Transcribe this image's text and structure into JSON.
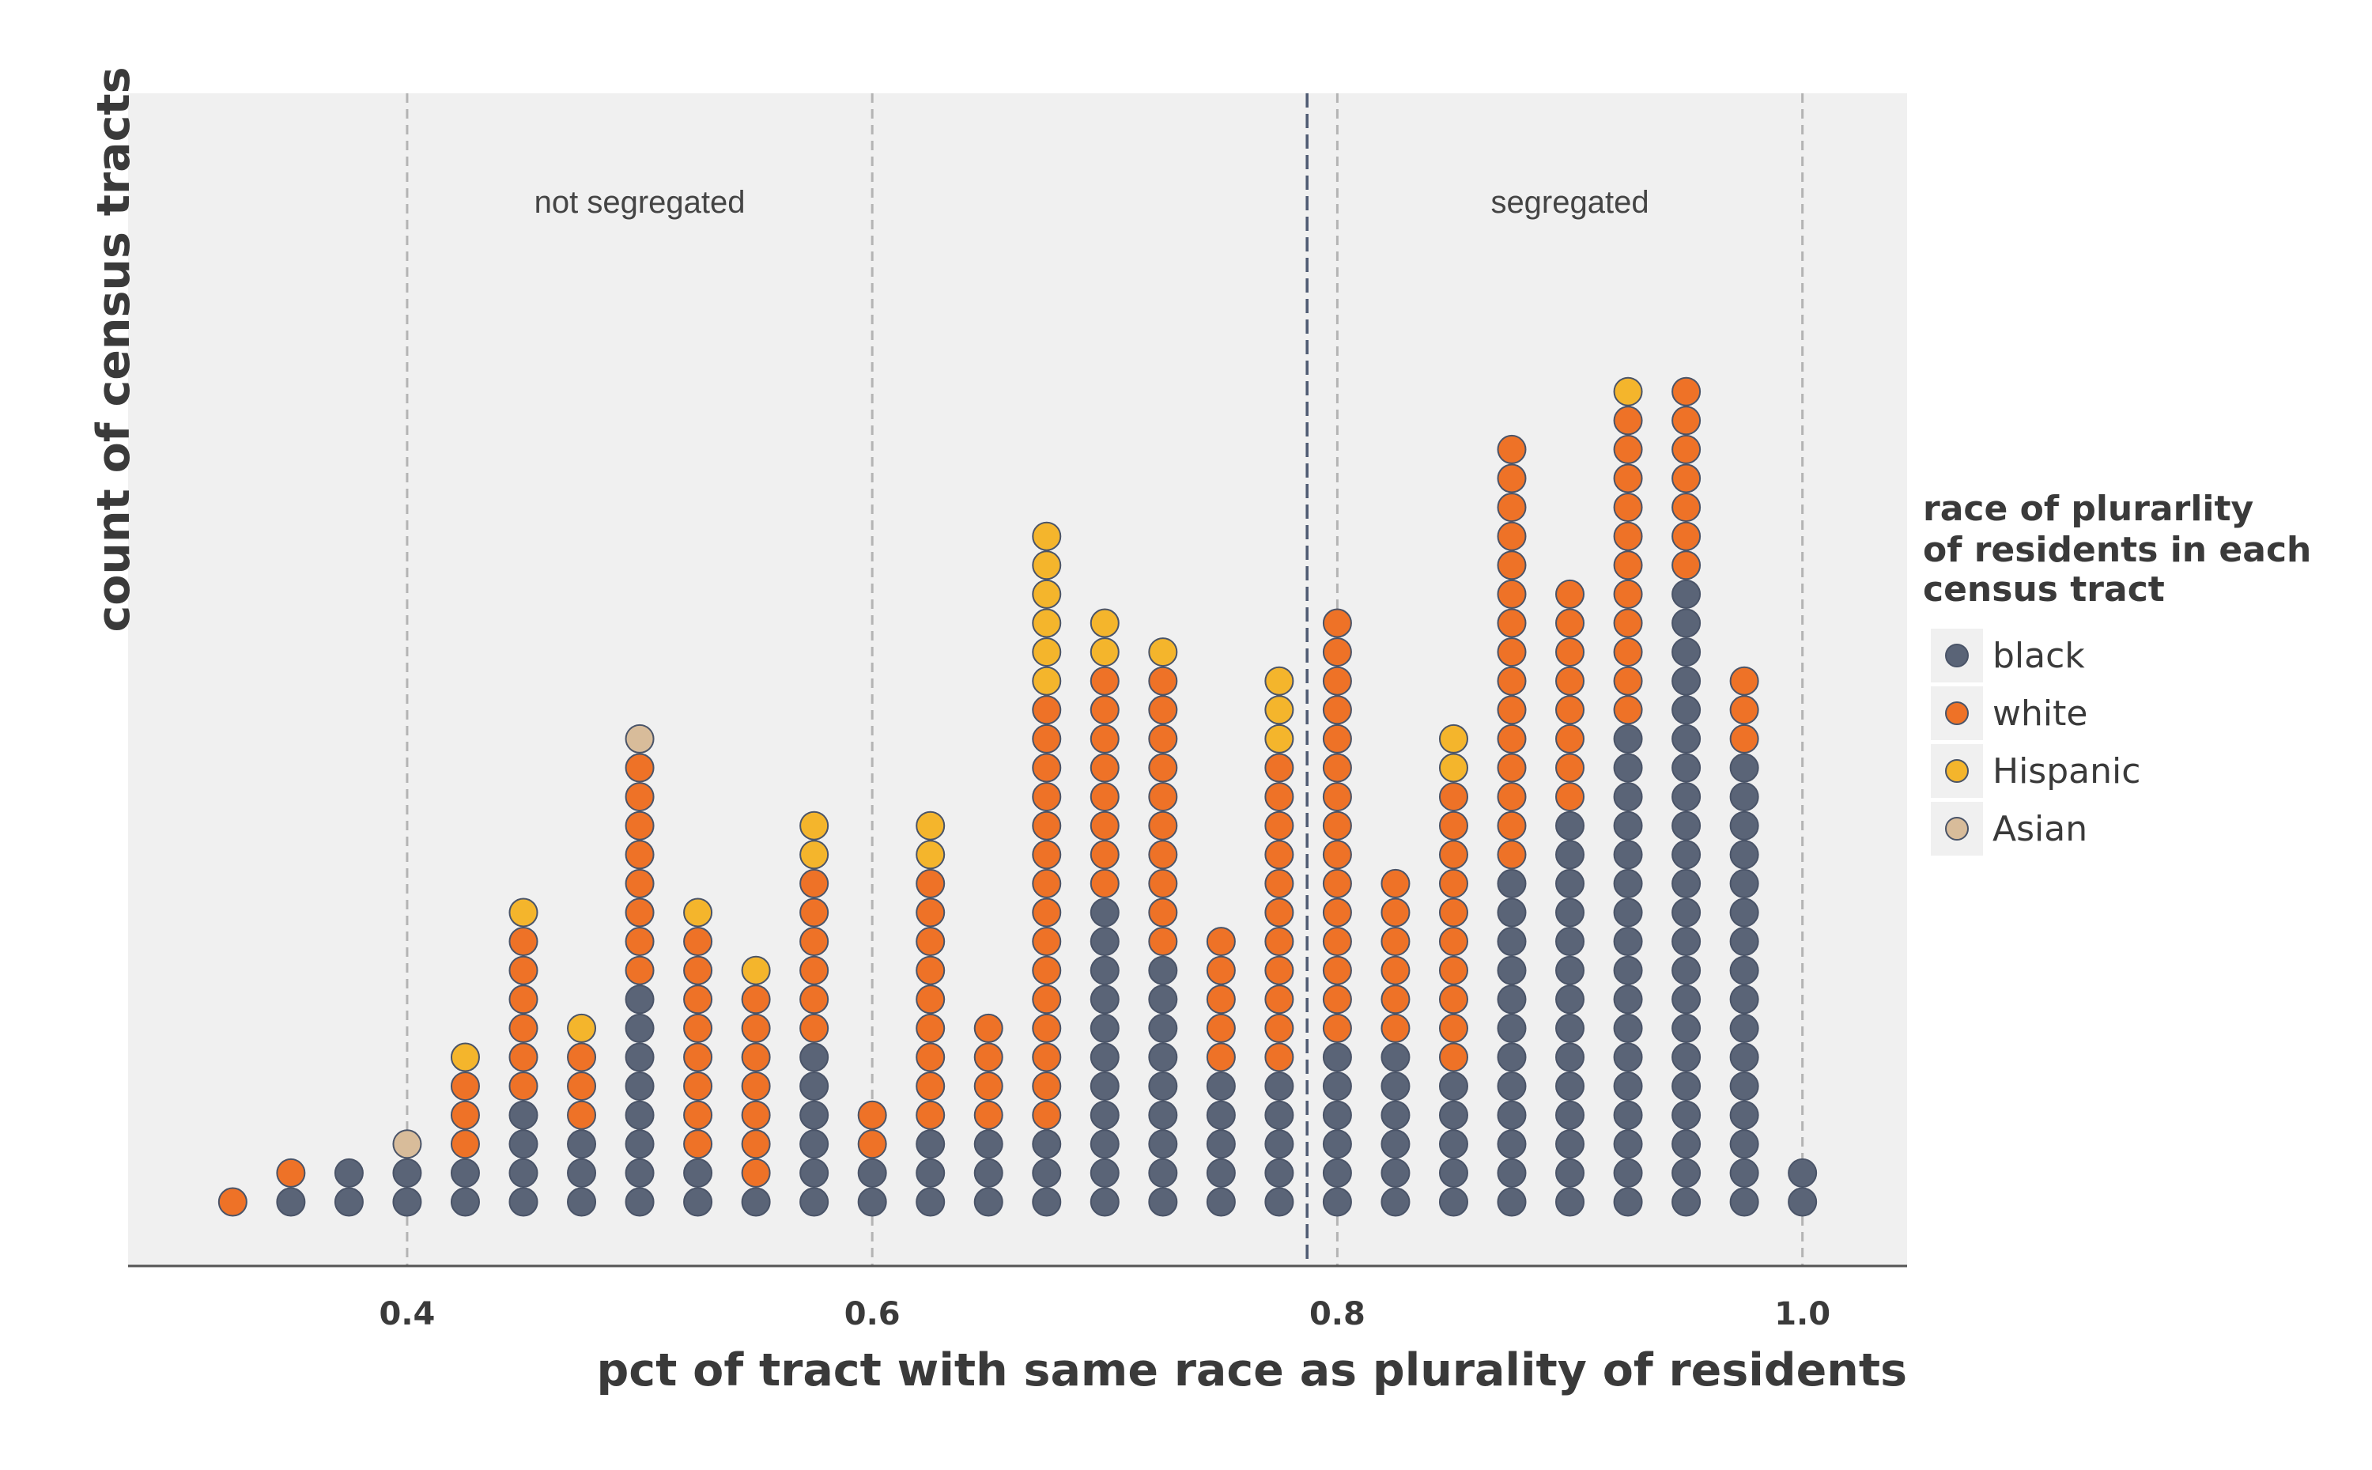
{
  "chart_data": {
    "type": "dotplot",
    "ylabel": "count of census tracts",
    "xlabel": "pct of tract with same race as plurality of residents",
    "xlim": [
      0.28,
      1.045
    ],
    "x_ticks": [
      {
        "value": 0.4,
        "label": "0.4"
      },
      {
        "value": 0.6,
        "label": "0.6"
      },
      {
        "value": 0.8,
        "label": "0.8"
      },
      {
        "value": 1.0,
        "label": "1.0"
      }
    ],
    "grid": "vertical dashed at ticks",
    "threshold": 0.787,
    "annotations": [
      {
        "text": "not segregated",
        "x": 0.5
      },
      {
        "text": "segregated",
        "x": 0.9
      }
    ],
    "legend": {
      "title_lines": [
        "race of plurarlity",
        "of residents in each",
        "census tract"
      ],
      "placement": "right",
      "entries": [
        {
          "key": "black",
          "label": "black",
          "color": "#5a6477"
        },
        {
          "key": "white",
          "label": "white",
          "color": "#ee7227"
        },
        {
          "key": "hispanic",
          "label": "Hispanic",
          "color": "#f4b52c"
        },
        {
          "key": "asian",
          "label": "Asian",
          "color": "#d8bc9a"
        }
      ]
    },
    "series_order": [
      "black",
      "white",
      "hispanic",
      "asian"
    ],
    "stacks": [
      {
        "x": 0.325,
        "black": 0,
        "white": 1,
        "hispanic": 0,
        "asian": 0
      },
      {
        "x": 0.35,
        "black": 1,
        "white": 1,
        "hispanic": 0,
        "asian": 0
      },
      {
        "x": 0.375,
        "black": 2,
        "white": 0,
        "hispanic": 0,
        "asian": 0
      },
      {
        "x": 0.4,
        "black": 2,
        "white": 0,
        "hispanic": 0,
        "asian": 1
      },
      {
        "x": 0.425,
        "black": 2,
        "white": 3,
        "hispanic": 1,
        "asian": 0
      },
      {
        "x": 0.45,
        "black": 4,
        "white": 6,
        "hispanic": 1,
        "asian": 0
      },
      {
        "x": 0.475,
        "black": 3,
        "white": 3,
        "hispanic": 1,
        "asian": 0
      },
      {
        "x": 0.5,
        "black": 8,
        "white": 8,
        "hispanic": 0,
        "asian": 1
      },
      {
        "x": 0.525,
        "black": 2,
        "white": 8,
        "hispanic": 1,
        "asian": 0
      },
      {
        "x": 0.55,
        "black": 1,
        "white": 7,
        "hispanic": 1,
        "asian": 0
      },
      {
        "x": 0.575,
        "black": 6,
        "white": 6,
        "hispanic": 2,
        "asian": 0
      },
      {
        "x": 0.6,
        "black": 2,
        "white": 2,
        "hispanic": 0,
        "asian": 0
      },
      {
        "x": 0.625,
        "black": 3,
        "white": 9,
        "hispanic": 2,
        "asian": 0
      },
      {
        "x": 0.65,
        "black": 3,
        "white": 4,
        "hispanic": 0,
        "asian": 0
      },
      {
        "x": 0.675,
        "black": 3,
        "white": 15,
        "hispanic": 6,
        "asian": 0
      },
      {
        "x": 0.7,
        "black": 11,
        "white": 8,
        "hispanic": 2,
        "asian": 0
      },
      {
        "x": 0.725,
        "black": 9,
        "white": 10,
        "hispanic": 1,
        "asian": 0
      },
      {
        "x": 0.75,
        "black": 5,
        "white": 5,
        "hispanic": 0,
        "asian": 0
      },
      {
        "x": 0.775,
        "black": 5,
        "white": 11,
        "hispanic": 3,
        "asian": 0
      },
      {
        "x": 0.8,
        "black": 6,
        "white": 15,
        "hispanic": 0,
        "asian": 0
      },
      {
        "x": 0.825,
        "black": 6,
        "white": 6,
        "hispanic": 0,
        "asian": 0
      },
      {
        "x": 0.85,
        "black": 5,
        "white": 10,
        "hispanic": 2,
        "asian": 0
      },
      {
        "x": 0.875,
        "black": 12,
        "white": 15,
        "hispanic": 0,
        "asian": 0
      },
      {
        "x": 0.9,
        "black": 14,
        "white": 8,
        "hispanic": 0,
        "asian": 0
      },
      {
        "x": 0.925,
        "black": 17,
        "white": 11,
        "hispanic": 1,
        "asian": 0
      },
      {
        "x": 0.95,
        "black": 22,
        "white": 7,
        "hispanic": 0,
        "asian": 0
      },
      {
        "x": 0.975,
        "black": 16,
        "white": 3,
        "hispanic": 0,
        "asian": 0
      },
      {
        "x": 1.0,
        "black": 2,
        "white": 0,
        "hispanic": 0,
        "asian": 0
      }
    ]
  }
}
